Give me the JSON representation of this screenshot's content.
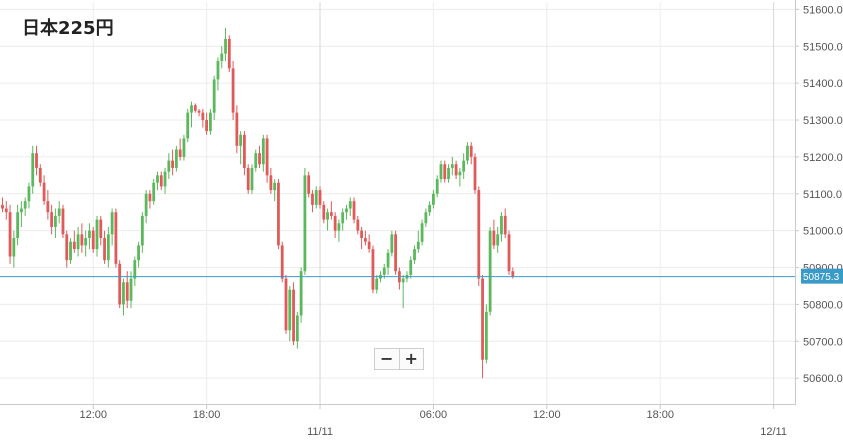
{
  "chart_data": {
    "type": "candlestick",
    "title": "日本225円",
    "xlabel": "",
    "ylabel": "",
    "ylim": [
      50530,
      51620
    ],
    "y_ticks": [
      50600,
      50700,
      50800,
      50900,
      51000,
      51100,
      51200,
      51300,
      51400,
      51500,
      51600
    ],
    "y_tick_labels": [
      "50600.0",
      "50700.0",
      "50800.0",
      "50900.0",
      "51000.0",
      "51100.0",
      "51200.0",
      "51300.0",
      "51400.0",
      "51500.0",
      "51600.0"
    ],
    "x_ticks": [
      {
        "label": "12:00",
        "index": 24,
        "date_line": false
      },
      {
        "label": "18:00",
        "index": 54,
        "date_line": false
      },
      {
        "label": "11/11",
        "index": 84,
        "date_line": true
      },
      {
        "label": "06:00",
        "index": 114,
        "date_line": false
      },
      {
        "label": "12:00",
        "index": 144,
        "date_line": false
      },
      {
        "label": "18:00",
        "index": 174,
        "date_line": false
      },
      {
        "label": "12/11",
        "index": 204,
        "date_line": true
      }
    ],
    "grid": true,
    "current_price": 50875.3,
    "current_price_label": "50875.3",
    "candles_ohlc": [
      [
        51070,
        51090,
        51050,
        51060
      ],
      [
        51060,
        51080,
        51030,
        51050
      ],
      [
        51050,
        51070,
        50910,
        50930
      ],
      [
        50930,
        51000,
        50900,
        50980
      ],
      [
        50980,
        51070,
        50960,
        51050
      ],
      [
        51050,
        51080,
        51010,
        51060
      ],
      [
        51060,
        51090,
        51040,
        51080
      ],
      [
        51080,
        51130,
        51060,
        51120
      ],
      [
        51120,
        51230,
        51100,
        51210
      ],
      [
        51210,
        51230,
        51150,
        51170
      ],
      [
        51170,
        51180,
        51120,
        51130
      ],
      [
        51130,
        51150,
        51070,
        51080
      ],
      [
        51080,
        51110,
        51030,
        51050
      ],
      [
        51050,
        51070,
        50990,
        51010
      ],
      [
        51010,
        51060,
        50980,
        51040
      ],
      [
        51040,
        51080,
        51020,
        51060
      ],
      [
        51060,
        51070,
        50980,
        50990
      ],
      [
        50990,
        51000,
        50900,
        50920
      ],
      [
        50920,
        50980,
        50910,
        50970
      ],
      [
        50970,
        51000,
        50940,
        50950
      ],
      [
        50950,
        51010,
        50930,
        50990
      ],
      [
        50990,
        51020,
        50940,
        50960
      ],
      [
        50960,
        51000,
        50930,
        50980
      ],
      [
        50980,
        51020,
        50950,
        51000
      ],
      [
        51000,
        51010,
        50940,
        50950
      ],
      [
        50950,
        51040,
        50930,
        51030
      ],
      [
        51030,
        51040,
        50960,
        50980
      ],
      [
        50980,
        51000,
        50910,
        50920
      ],
      [
        50920,
        51010,
        50900,
        50990
      ],
      [
        50990,
        51060,
        50960,
        51050
      ],
      [
        51050,
        51060,
        50900,
        50910
      ],
      [
        50910,
        50920,
        50790,
        50800
      ],
      [
        50800,
        50870,
        50770,
        50860
      ],
      [
        50860,
        50890,
        50790,
        50810
      ],
      [
        50810,
        50890,
        50790,
        50870
      ],
      [
        50870,
        50930,
        50850,
        50920
      ],
      [
        50920,
        50970,
        50900,
        50960
      ],
      [
        50960,
        51050,
        50940,
        51040
      ],
      [
        51040,
        51110,
        51020,
        51100
      ],
      [
        51100,
        51110,
        51060,
        51080
      ],
      [
        51080,
        51140,
        51070,
        51130
      ],
      [
        51130,
        51160,
        51110,
        51150
      ],
      [
        51150,
        51160,
        51110,
        51120
      ],
      [
        51120,
        51170,
        51100,
        51160
      ],
      [
        51160,
        51210,
        51140,
        51190
      ],
      [
        51190,
        51220,
        51150,
        51170
      ],
      [
        51170,
        51230,
        51160,
        51220
      ],
      [
        51220,
        51250,
        51190,
        51200
      ],
      [
        51200,
        51260,
        51190,
        51250
      ],
      [
        51250,
        51330,
        51240,
        51320
      ],
      [
        51320,
        51350,
        51280,
        51340
      ],
      [
        51340,
        51345,
        51320,
        51325
      ],
      [
        51325,
        51330,
        51310,
        51320
      ],
      [
        51320,
        51330,
        51280,
        51300
      ],
      [
        51300,
        51320,
        51260,
        51270
      ],
      [
        51270,
        51330,
        51260,
        51320
      ],
      [
        51320,
        51420,
        51300,
        51410
      ],
      [
        51410,
        51470,
        51380,
        51460
      ],
      [
        51460,
        51500,
        51440,
        51480
      ],
      [
        51480,
        51550,
        51460,
        51520
      ],
      [
        51520,
        51530,
        51430,
        51440
      ],
      [
        51440,
        51460,
        51300,
        51320
      ],
      [
        51320,
        51340,
        51210,
        51230
      ],
      [
        51230,
        51270,
        51180,
        51260
      ],
      [
        51260,
        51270,
        51150,
        51170
      ],
      [
        51170,
        51180,
        51100,
        51110
      ],
      [
        51110,
        51180,
        51100,
        51170
      ],
      [
        51170,
        51220,
        51160,
        51210
      ],
      [
        51210,
        51230,
        51170,
        51180
      ],
      [
        51180,
        51260,
        51160,
        51250
      ],
      [
        51250,
        51260,
        51130,
        51150
      ],
      [
        51150,
        51170,
        51100,
        51110
      ],
      [
        51110,
        51140,
        51080,
        51130
      ],
      [
        51130,
        51140,
        50950,
        50960
      ],
      [
        50960,
        50970,
        50860,
        50870
      ],
      [
        50870,
        50880,
        50720,
        50730
      ],
      [
        50730,
        50850,
        50700,
        50840
      ],
      [
        50840,
        50860,
        50690,
        50700
      ],
      [
        50700,
        50780,
        50680,
        50770
      ],
      [
        50770,
        50900,
        50750,
        50890
      ],
      [
        50890,
        51170,
        50880,
        51150
      ],
      [
        51150,
        51160,
        51090,
        51100
      ],
      [
        51100,
        51110,
        51050,
        51070
      ],
      [
        51070,
        51120,
        51060,
        51110
      ],
      [
        51110,
        51120,
        51060,
        51070
      ],
      [
        51070,
        51080,
        51020,
        51030
      ],
      [
        51030,
        51060,
        51000,
        51050
      ],
      [
        51050,
        51080,
        51030,
        51040
      ],
      [
        51040,
        51050,
        50980,
        51000
      ],
      [
        51000,
        51030,
        50970,
        51020
      ],
      [
        51020,
        51060,
        51000,
        51050
      ],
      [
        51050,
        51070,
        51030,
        51060
      ],
      [
        51060,
        51090,
        51040,
        51080
      ],
      [
        51080,
        51090,
        51020,
        51030
      ],
      [
        51030,
        51040,
        50990,
        51000
      ],
      [
        51000,
        51010,
        50950,
        50980
      ],
      [
        50980,
        51000,
        50960,
        50970
      ],
      [
        50970,
        50990,
        50940,
        50950
      ],
      [
        50950,
        50960,
        50830,
        50840
      ],
      [
        50840,
        50880,
        50830,
        50870
      ],
      [
        50870,
        50890,
        50860,
        50880
      ],
      [
        50880,
        50910,
        50870,
        50900
      ],
      [
        50900,
        50950,
        50880,
        50940
      ],
      [
        50940,
        51000,
        50930,
        50990
      ],
      [
        50990,
        51000,
        50880,
        50890
      ],
      [
        50890,
        50900,
        50840,
        50860
      ],
      [
        50860,
        50880,
        50790,
        50870
      ],
      [
        50870,
        50890,
        50860,
        50880
      ],
      [
        50880,
        50930,
        50870,
        50920
      ],
      [
        50920,
        50960,
        50910,
        50950
      ],
      [
        50950,
        51000,
        50940,
        50970
      ],
      [
        50970,
        51030,
        50960,
        51020
      ],
      [
        51020,
        51060,
        51010,
        51050
      ],
      [
        51050,
        51080,
        51040,
        51070
      ],
      [
        51070,
        51110,
        51060,
        51100
      ],
      [
        51100,
        51150,
        51090,
        51140
      ],
      [
        51140,
        51190,
        51130,
        51180
      ],
      [
        51180,
        51190,
        51130,
        51140
      ],
      [
        51140,
        51180,
        51130,
        51170
      ],
      [
        51170,
        51200,
        51150,
        51180
      ],
      [
        51180,
        51190,
        51140,
        51150
      ],
      [
        51150,
        51170,
        51120,
        51160
      ],
      [
        51160,
        51210,
        51140,
        51190
      ],
      [
        51190,
        51240,
        51180,
        51230
      ],
      [
        51230,
        51240,
        51180,
        51200
      ],
      [
        51200,
        51210,
        51100,
        51110
      ],
      [
        51110,
        51120,
        50850,
        50870
      ],
      [
        50870,
        50880,
        50600,
        50650
      ],
      [
        50650,
        50800,
        50640,
        50780
      ],
      [
        50780,
        51010,
        50770,
        51000
      ],
      [
        51000,
        51030,
        50950,
        50960
      ],
      [
        50960,
        51010,
        50940,
        50990
      ],
      [
        50990,
        51050,
        50970,
        51040
      ],
      [
        51040,
        51060,
        50980,
        50990
      ],
      [
        50990,
        51000,
        50880,
        50890
      ],
      [
        50890,
        50900,
        50870,
        50875
      ]
    ]
  },
  "zoom": {
    "minus_label": "−",
    "plus_label": "+"
  }
}
